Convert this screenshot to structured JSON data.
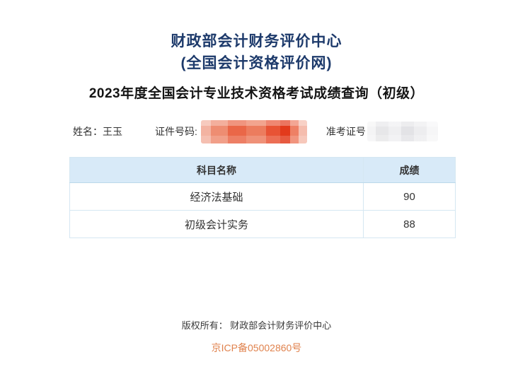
{
  "header": {
    "title_line1": "财政部会计财务评价中心",
    "title_line2": "(全国会计资格评价网)",
    "heading": "2023年度全国会计专业技术资格考试成绩查询（初级）"
  },
  "info": {
    "name_label": "姓名：",
    "name_value": "王玉",
    "id_label": "证件号码:",
    "id_value_redacted": "red-mosaic",
    "ticket_label": "准考证号",
    "ticket_value_redacted": "grey-mosaic"
  },
  "table": {
    "headers": [
      "科目名称",
      "成绩"
    ],
    "rows": [
      {
        "subject": "经济法基础",
        "score": "90"
      },
      {
        "subject": "初级会计实务",
        "score": "88"
      }
    ]
  },
  "footer": {
    "copyright": "版权所有： 财政部会计财务评价中心",
    "icp": "京ICP备05002860号"
  },
  "colors": {
    "title_blue": "#1d3a6b",
    "table_header_bg": "#d8eaf8",
    "table_border": "#d5e7f2",
    "icp_orange": "#e0824d",
    "redaction_red": "#ea6748",
    "redaction_grey": "#e9e9eb"
  }
}
